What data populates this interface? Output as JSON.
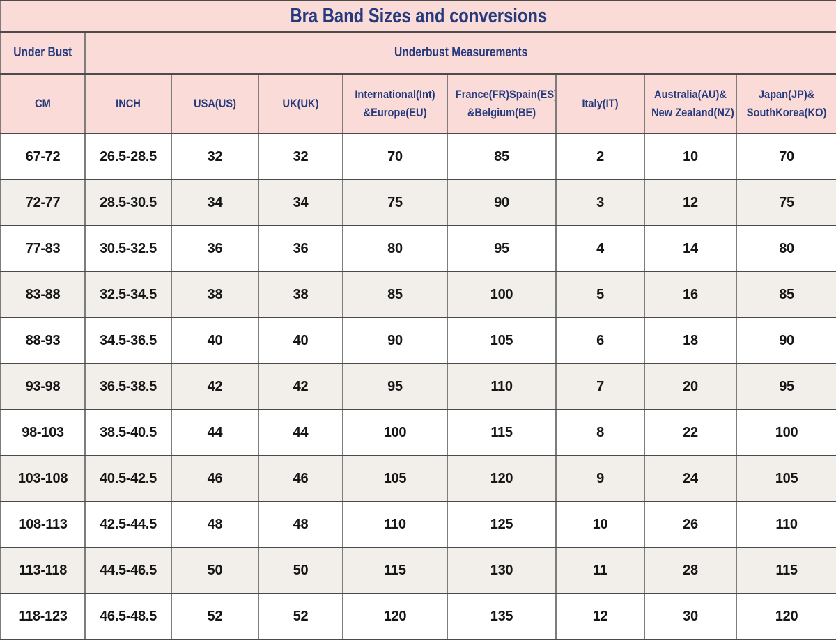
{
  "chart_data": {
    "type": "table",
    "title": "Bra Band Sizes and conversions",
    "group_header": {
      "under_bust": "Under Bust",
      "underbust_measurements": "Underbust Measurements"
    },
    "columns": [
      {
        "id": "cm",
        "lines": [
          "CM"
        ]
      },
      {
        "id": "inch",
        "lines": [
          "INCH"
        ]
      },
      {
        "id": "usa",
        "lines": [
          "USA(US)"
        ]
      },
      {
        "id": "uk",
        "lines": [
          "UK(UK)"
        ]
      },
      {
        "id": "international-europe",
        "lines": [
          "International(Int)",
          "&Europe(EU)"
        ]
      },
      {
        "id": "france-spain-belgium",
        "lines": [
          "France(FR)Spain(ES)",
          "&Belgium(BE)"
        ]
      },
      {
        "id": "italy",
        "lines": [
          "Italy(IT)"
        ]
      },
      {
        "id": "australia-newzealand",
        "lines": [
          "Australia(AU)&",
          "New Zealand(NZ)"
        ]
      },
      {
        "id": "japan-southkorea",
        "lines": [
          "Japan(JP)&",
          "SouthKorea(KO)"
        ]
      }
    ],
    "rows": [
      [
        "67-72",
        "26.5-28.5",
        "32",
        "32",
        "70",
        "85",
        "2",
        "10",
        "70"
      ],
      [
        "72-77",
        "28.5-30.5",
        "34",
        "34",
        "75",
        "90",
        "3",
        "12",
        "75"
      ],
      [
        "77-83",
        "30.5-32.5",
        "36",
        "36",
        "80",
        "95",
        "4",
        "14",
        "80"
      ],
      [
        "83-88",
        "32.5-34.5",
        "38",
        "38",
        "85",
        "100",
        "5",
        "16",
        "85"
      ],
      [
        "88-93",
        "34.5-36.5",
        "40",
        "40",
        "90",
        "105",
        "6",
        "18",
        "90"
      ],
      [
        "93-98",
        "36.5-38.5",
        "42",
        "42",
        "95",
        "110",
        "7",
        "20",
        "95"
      ],
      [
        "98-103",
        "38.5-40.5",
        "44",
        "44",
        "100",
        "115",
        "8",
        "22",
        "100"
      ],
      [
        "103-108",
        "40.5-42.5",
        "46",
        "46",
        "105",
        "120",
        "9",
        "24",
        "105"
      ],
      [
        "108-113",
        "42.5-44.5",
        "48",
        "48",
        "110",
        "125",
        "10",
        "26",
        "110"
      ],
      [
        "113-118",
        "44.5-46.5",
        "50",
        "50",
        "115",
        "130",
        "11",
        "28",
        "115"
      ],
      [
        "118-123",
        "46.5-48.5",
        "52",
        "52",
        "120",
        "135",
        "12",
        "30",
        "120"
      ]
    ]
  },
  "colors": {
    "header_bg": "#fbdbd8",
    "header_text": "#243a7c",
    "row_bg": "#ffffff",
    "row_alt_bg": "#f2efea",
    "data_text": "#161616",
    "grid_vertical": "#7d7d7d",
    "grid_horizontal": "#4b4b4b"
  }
}
